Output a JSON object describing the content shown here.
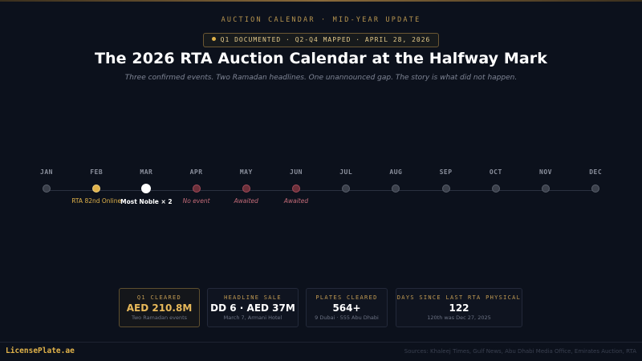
{
  "header": {
    "eyebrow": "AUCTION CALENDAR · MID-YEAR UPDATE",
    "status_pill": "Q1 DOCUMENTED · Q2-Q4 MAPPED · APRIL 28, 2026",
    "title": "The 2026 RTA Auction Calendar at the Halfway Mark",
    "subtitle": "Three confirmed events. Two Ramadan headlines. One unannounced gap. The story is what did not happen."
  },
  "timeline": {
    "months": [
      {
        "name": "JAN",
        "label": "",
        "status": "future"
      },
      {
        "name": "FEB",
        "label": "RTA 82nd Online",
        "status": "done"
      },
      {
        "name": "MAR",
        "label": "Most Noble × 2",
        "status": "current"
      },
      {
        "name": "APR",
        "label": "No event",
        "status": "none"
      },
      {
        "name": "MAY",
        "label": "Awaited",
        "status": "none"
      },
      {
        "name": "JUN",
        "label": "Awaited",
        "status": "none"
      },
      {
        "name": "JUL",
        "label": "",
        "status": "future"
      },
      {
        "name": "AUG",
        "label": "",
        "status": "future"
      },
      {
        "name": "SEP",
        "label": "",
        "status": "future"
      },
      {
        "name": "OCT",
        "label": "",
        "status": "future"
      },
      {
        "name": "NOV",
        "label": "",
        "status": "future"
      },
      {
        "name": "DEC",
        "label": "",
        "status": "future"
      }
    ]
  },
  "stats": [
    {
      "label": "Q1 CLEARED",
      "value": "AED 210.8M",
      "note": "Two Ramadan events",
      "highlight": true
    },
    {
      "label": "HEADLINE SALE",
      "value": "DD 6 · AED 37M",
      "note": "March 7, Armani Hotel",
      "highlight": false
    },
    {
      "label": "PLATES CLEARED",
      "value": "564+",
      "note": "9 Dubai · 555 Abu Dhabi",
      "highlight": false
    },
    {
      "label": "DAYS SINCE LAST RTA PHYSICAL",
      "value": "122",
      "note": "120th was Dec 27, 2025",
      "highlight": false
    }
  ],
  "footer": {
    "brand": "LicensePlate.ae",
    "sources": "Sources: Khaleej Times, Gulf News, Abu Dhabi Media Office, Emirates Auction, RTA"
  },
  "colors": {
    "background": "#0c111c",
    "accent_gold": "#e0b24a",
    "muted_red": "#a44b5a"
  }
}
